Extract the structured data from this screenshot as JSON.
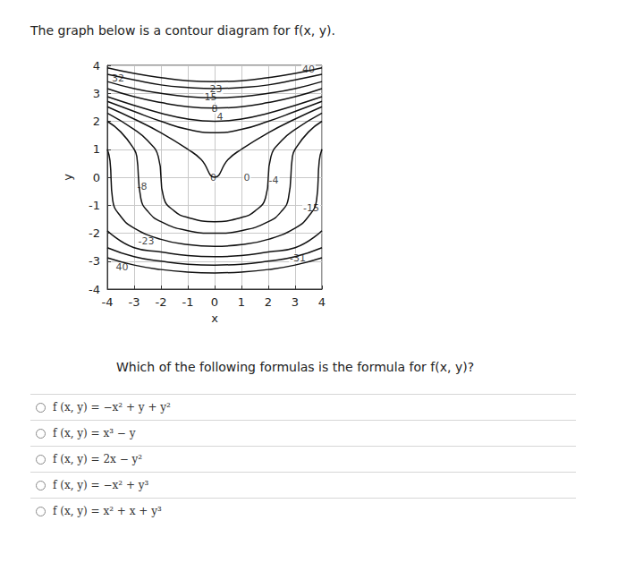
{
  "intro": "The graph below is a contour diagram for f(x, y).",
  "chart_data": {
    "type": "contour",
    "x_label": "x",
    "y_label": "y",
    "xlim": [
      -4,
      4
    ],
    "ylim": [
      -4,
      4
    ],
    "xticks": [
      -4,
      -3,
      -2,
      -1,
      0,
      1,
      2,
      3,
      4
    ],
    "yticks": [
      -4,
      -3,
      -2,
      -1,
      0,
      1,
      2,
      3,
      4
    ],
    "grid": true,
    "color": "#111111",
    "contours": [
      {
        "x": [
          -4,
          -3,
          -2,
          -1,
          0,
          1,
          2,
          3,
          4
        ],
        "y": [
          3.91,
          3.71,
          3.56,
          3.45,
          3.42,
          3.45,
          3.56,
          3.71,
          3.91
        ]
      },
      {
        "x": [
          -4,
          -3,
          -2,
          -1,
          0,
          1,
          2,
          3,
          4
        ],
        "y": [
          3.68,
          3.48,
          3.3,
          3.21,
          3.17,
          3.21,
          3.3,
          3.48,
          3.68
        ]
      },
      {
        "x": [
          -4,
          -3,
          -2,
          -1,
          0,
          1,
          2,
          3,
          4
        ],
        "y": [
          3.42,
          3.17,
          3.0,
          2.88,
          2.84,
          2.88,
          3.0,
          3.17,
          3.42
        ]
      },
      {
        "x": [
          -4,
          -3,
          -2,
          -1,
          0,
          1,
          2,
          3,
          4
        ],
        "y": [
          3.17,
          2.88,
          2.67,
          2.52,
          2.47,
          2.52,
          2.67,
          2.88,
          3.17
        ]
      },
      {
        "x": [
          -4,
          -3,
          -2,
          -1,
          0,
          1,
          2,
          3,
          4
        ],
        "y": [
          2.88,
          2.57,
          2.29,
          2.08,
          2.0,
          2.08,
          2.29,
          2.57,
          2.88
        ]
      },
      {
        "x": [
          -4,
          -3,
          -2,
          -1,
          0,
          1,
          2,
          3,
          4
        ],
        "y": [
          2.71,
          2.35,
          2.0,
          1.71,
          1.59,
          1.71,
          2.0,
          2.35,
          2.71
        ]
      },
      {
        "x": [
          -4,
          -3,
          -2,
          -1,
          -0.5,
          0,
          0.5,
          1,
          2,
          3,
          4
        ],
        "y": [
          2.52,
          2.08,
          1.59,
          1.0,
          0.63,
          0,
          0.63,
          1.0,
          1.59,
          2.08,
          2.52
        ]
      },
      {
        "x": [
          -4,
          -3,
          -2.5,
          -2.1,
          -1.9,
          -1.5,
          -1,
          0,
          1,
          1.5,
          1.9,
          2.1,
          2.5,
          3,
          4
        ],
        "y": [
          2.29,
          1.71,
          1.31,
          0.74,
          -0.73,
          -1.21,
          -1.44,
          -1.59,
          -1.44,
          -1.21,
          -0.73,
          0.74,
          1.31,
          1.71,
          2.29
        ]
      },
      {
        "x": [
          -4,
          -3.5,
          -3,
          -2.9,
          -2.75,
          -2.5,
          -2,
          -1,
          0,
          1,
          2,
          2.5,
          2.75,
          2.9,
          3,
          3.5,
          4
        ],
        "y": [
          2.0,
          1.62,
          1.0,
          0.74,
          -0.76,
          -1.21,
          -1.59,
          -1.91,
          -2.0,
          -1.91,
          -1.59,
          -1.21,
          -0.76,
          0.74,
          1.0,
          1.62,
          2.0
        ]
      },
      {
        "x": [
          -4,
          -3.9,
          -3.8,
          -3.5,
          -3,
          -2,
          -1,
          0,
          1,
          2,
          3,
          3.5,
          3.8,
          3.9,
          4
        ],
        "y": [
          1.0,
          0.59,
          -0.82,
          -1.4,
          -1.82,
          -2.22,
          -2.41,
          -2.47,
          -2.41,
          -2.22,
          -1.82,
          -1.4,
          -0.82,
          0.59,
          1.0
        ]
      },
      {
        "x": [
          -4,
          -3,
          -2,
          -1,
          0,
          1,
          2,
          3,
          4
        ],
        "y": [
          -1.91,
          -2.52,
          -2.67,
          -2.8,
          -2.84,
          -2.8,
          -2.67,
          -2.52,
          -1.91
        ]
      },
      {
        "x": [
          -4,
          -3,
          -2,
          -1,
          0,
          1,
          2,
          3,
          4
        ],
        "y": [
          -2.52,
          -2.84,
          -3.0,
          -3.11,
          -3.14,
          -3.11,
          -3.0,
          -2.84,
          -2.52
        ]
      },
      {
        "x": [
          -4,
          -3,
          -2,
          -1,
          0,
          1,
          2,
          3,
          4
        ],
        "y": [
          -2.88,
          -3.14,
          -3.3,
          -3.39,
          -3.42,
          -3.39,
          -3.3,
          -3.14,
          -2.88
        ]
      }
    ],
    "annotations": [
      {
        "text": "32",
        "x": -3.6,
        "y": 3.55
      },
      {
        "text": "40",
        "x": 3.5,
        "y": 3.85
      },
      {
        "text": "23",
        "x": 0.05,
        "y": 3.15
      },
      {
        "text": "15",
        "x": -0.15,
        "y": 2.85
      },
      {
        "text": "8",
        "x": 0.0,
        "y": 2.45
      },
      {
        "text": "4",
        "x": 0.2,
        "y": 2.15
      },
      {
        "text": "0",
        "x": -0.05,
        "y": 0.0
      },
      {
        "text": "0",
        "x": 1.2,
        "y": 0.0
      },
      {
        "text": "-4",
        "x": 2.2,
        "y": -0.1
      },
      {
        "text": "-8",
        "x": -2.7,
        "y": -0.35
      },
      {
        "text": "-15",
        "x": 3.6,
        "y": -1.1
      },
      {
        "text": "-23",
        "x": -2.55,
        "y": -2.3
      },
      {
        "text": "-31",
        "x": 3.1,
        "y": -2.9
      },
      {
        "text": "40",
        "x": -3.45,
        "y": -3.2
      }
    ]
  },
  "question": "Which of the following formulas is the formula for f(x, y)?",
  "options": [
    "f (x, y) = −x² + y + y²",
    "f (x, y) = x³ − y",
    "f (x, y) = 2x − y²",
    "f (x, y) = −x² + y³",
    "f (x, y) = x² + x + y³"
  ]
}
